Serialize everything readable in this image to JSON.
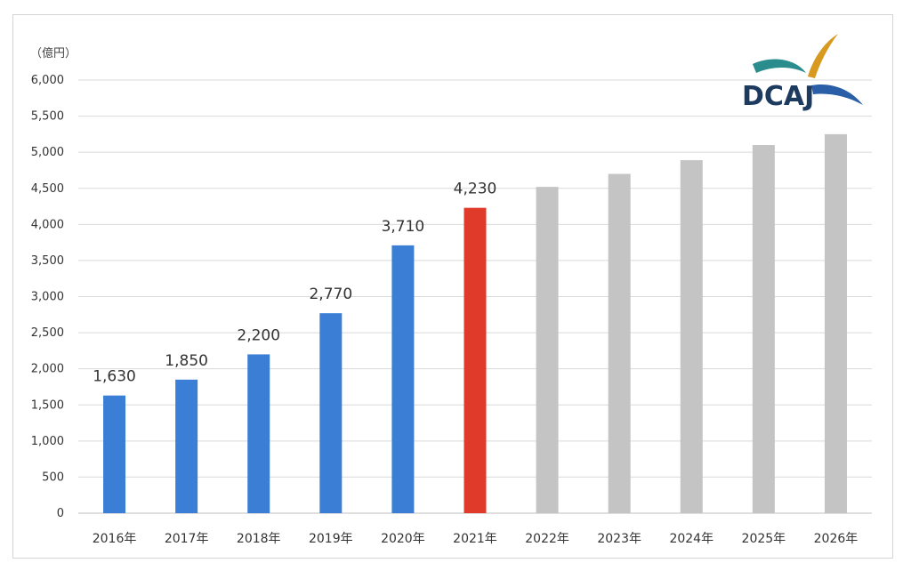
{
  "chart_data": {
    "type": "bar",
    "unit_label": "（億円）",
    "categories": [
      "2016年",
      "2017年",
      "2018年",
      "2019年",
      "2020年",
      "2021年",
      "2022年",
      "2023年",
      "2024年",
      "2025年",
      "2026年"
    ],
    "values": [
      1630,
      1850,
      2200,
      2770,
      3710,
      4230,
      4520,
      4700,
      4890,
      5100,
      5250
    ],
    "data_labels": [
      "1,630",
      "1,850",
      "2,200",
      "2,770",
      "3,710",
      "4,230",
      "",
      "",
      "",
      "",
      ""
    ],
    "y_ticks": [
      "0",
      "500",
      "1,000",
      "1,500",
      "2,000",
      "2,500",
      "3,000",
      "3,500",
      "4,000",
      "4,500",
      "5,000",
      "5,500",
      "6,000"
    ],
    "ylim": [
      0,
      6000
    ],
    "grid": true,
    "colors": {
      "actual": "#3a7fd5",
      "highlight": "#e03a2a",
      "forecast": "#c4c4c4"
    },
    "bar_color_keys": [
      "actual",
      "actual",
      "actual",
      "actual",
      "actual",
      "highlight",
      "forecast",
      "forecast",
      "forecast",
      "forecast",
      "forecast"
    ]
  },
  "logo": {
    "text": "DCAJ",
    "colors": {
      "dark": "#1d3a5f",
      "teal": "#2a8c8c",
      "gold": "#d79a1e",
      "blue": "#2a5fa8"
    }
  }
}
